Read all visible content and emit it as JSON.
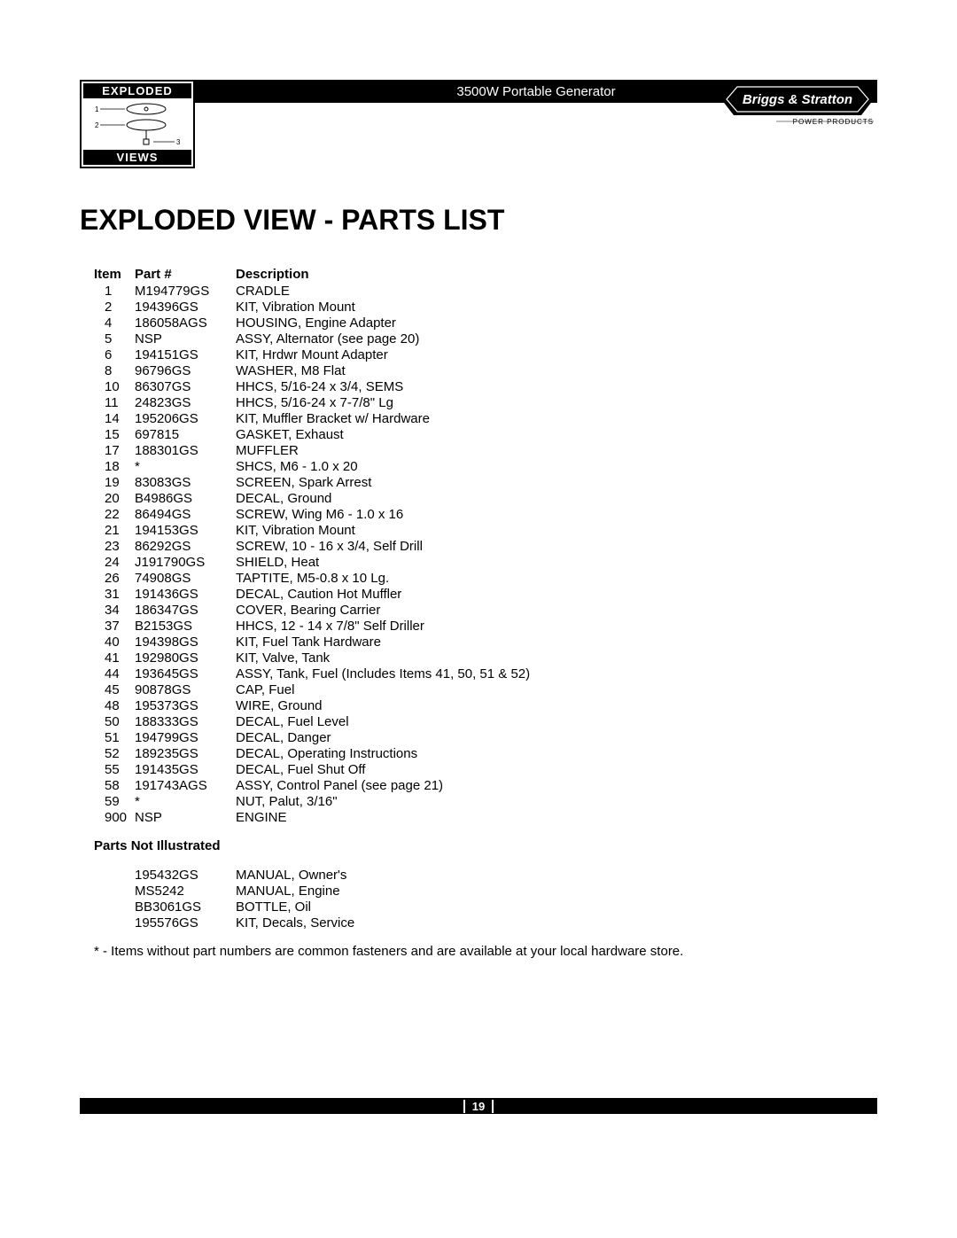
{
  "header": {
    "badge_top": "EXPLODED",
    "badge_bottom": "VIEWS",
    "product_title": "3500W Portable Generator",
    "brand_top": "Briggs & Stratton",
    "brand_sub": "POWER PRODUCTS"
  },
  "page_title": "EXPLODED VIEW - PARTS LIST",
  "columns": {
    "item": "Item",
    "part": "Part #",
    "desc": "Description"
  },
  "parts": [
    {
      "item": "1",
      "part": "M194779GS",
      "desc": "CRADLE"
    },
    {
      "item": "2",
      "part": "194396GS",
      "desc": "KIT, Vibration Mount"
    },
    {
      "item": "4",
      "part": "186058AGS",
      "desc": "HOUSING, Engine Adapter"
    },
    {
      "item": "5",
      "part": "NSP",
      "desc": "ASSY, Alternator (see page 20)"
    },
    {
      "item": "6",
      "part": "194151GS",
      "desc": "KIT, Hrdwr Mount Adapter"
    },
    {
      "item": "8",
      "part": "96796GS",
      "desc": "WASHER, M8 Flat"
    },
    {
      "item": "10",
      "part": "86307GS",
      "desc": "HHCS, 5/16-24 x 3/4, SEMS"
    },
    {
      "item": "11",
      "part": "24823GS",
      "desc": "HHCS, 5/16-24 x 7-7/8\" Lg"
    },
    {
      "item": "14",
      "part": "195206GS",
      "desc": "KIT, Muffler Bracket w/ Hardware"
    },
    {
      "item": "15",
      "part": "697815",
      "desc": "GASKET, Exhaust"
    },
    {
      "item": "17",
      "part": "188301GS",
      "desc": "MUFFLER"
    },
    {
      "item": "18",
      "part": "*",
      "desc": "SHCS, M6 - 1.0 x 20"
    },
    {
      "item": "19",
      "part": "83083GS",
      "desc": "SCREEN, Spark Arrest"
    },
    {
      "item": "20",
      "part": "B4986GS",
      "desc": "DECAL, Ground"
    },
    {
      "item": "22",
      "part": "86494GS",
      "desc": "SCREW, Wing M6 - 1.0 x 16"
    },
    {
      "item": "21",
      "part": "194153GS",
      "desc": "KIT, Vibration Mount"
    },
    {
      "item": "23",
      "part": "86292GS",
      "desc": "SCREW, 10 - 16 x 3/4, Self Drill"
    },
    {
      "item": "24",
      "part": "J191790GS",
      "desc": "SHIELD, Heat"
    },
    {
      "item": "26",
      "part": "74908GS",
      "desc": "TAPTITE, M5-0.8 x 10 Lg."
    },
    {
      "item": "31",
      "part": "191436GS",
      "desc": "DECAL, Caution Hot Muffler"
    },
    {
      "item": "34",
      "part": "186347GS",
      "desc": "COVER, Bearing Carrier"
    },
    {
      "item": "37",
      "part": "B2153GS",
      "desc": "HHCS, 12 - 14 x 7/8\" Self Driller"
    },
    {
      "item": "40",
      "part": "194398GS",
      "desc": "KIT, Fuel Tank Hardware"
    },
    {
      "item": "41",
      "part": "192980GS",
      "desc": "KIT, Valve, Tank"
    },
    {
      "item": "44",
      "part": "193645GS",
      "desc": "ASSY, Tank, Fuel (Includes Items 41, 50, 51 & 52)"
    },
    {
      "item": "45",
      "part": "90878GS",
      "desc": "CAP, Fuel"
    },
    {
      "item": "48",
      "part": "195373GS",
      "desc": "WIRE, Ground"
    },
    {
      "item": "50",
      "part": "188333GS",
      "desc": "DECAL, Fuel Level"
    },
    {
      "item": "51",
      "part": "194799GS",
      "desc": "DECAL, Danger"
    },
    {
      "item": "52",
      "part": "189235GS",
      "desc": "DECAL, Operating Instructions"
    },
    {
      "item": "55",
      "part": "191435GS",
      "desc": "DECAL, Fuel Shut Off"
    },
    {
      "item": "58",
      "part": "191743AGS",
      "desc": "ASSY, Control Panel (see page 21)"
    },
    {
      "item": "59",
      "part": "*",
      "desc": "NUT, Palut, 3/16\""
    },
    {
      "item": "900",
      "part": "NSP",
      "desc": "ENGINE"
    }
  ],
  "not_illustrated_title": "Parts Not Illustrated",
  "not_illustrated": [
    {
      "part": "195432GS",
      "desc": "MANUAL, Owner's"
    },
    {
      "part": "MS5242",
      "desc": "MANUAL, Engine"
    },
    {
      "part": "BB3061GS",
      "desc": "BOTTLE, Oil"
    },
    {
      "part": "195576GS",
      "desc": "KIT, Decals, Service"
    }
  ],
  "footnote": "* - Items without part numbers are common fasteners and are available at your local hardware store.",
  "page_number": "19",
  "colors": {
    "text": "#000000",
    "bg": "#ffffff",
    "bar": "#000000",
    "bar_text": "#ffffff"
  }
}
